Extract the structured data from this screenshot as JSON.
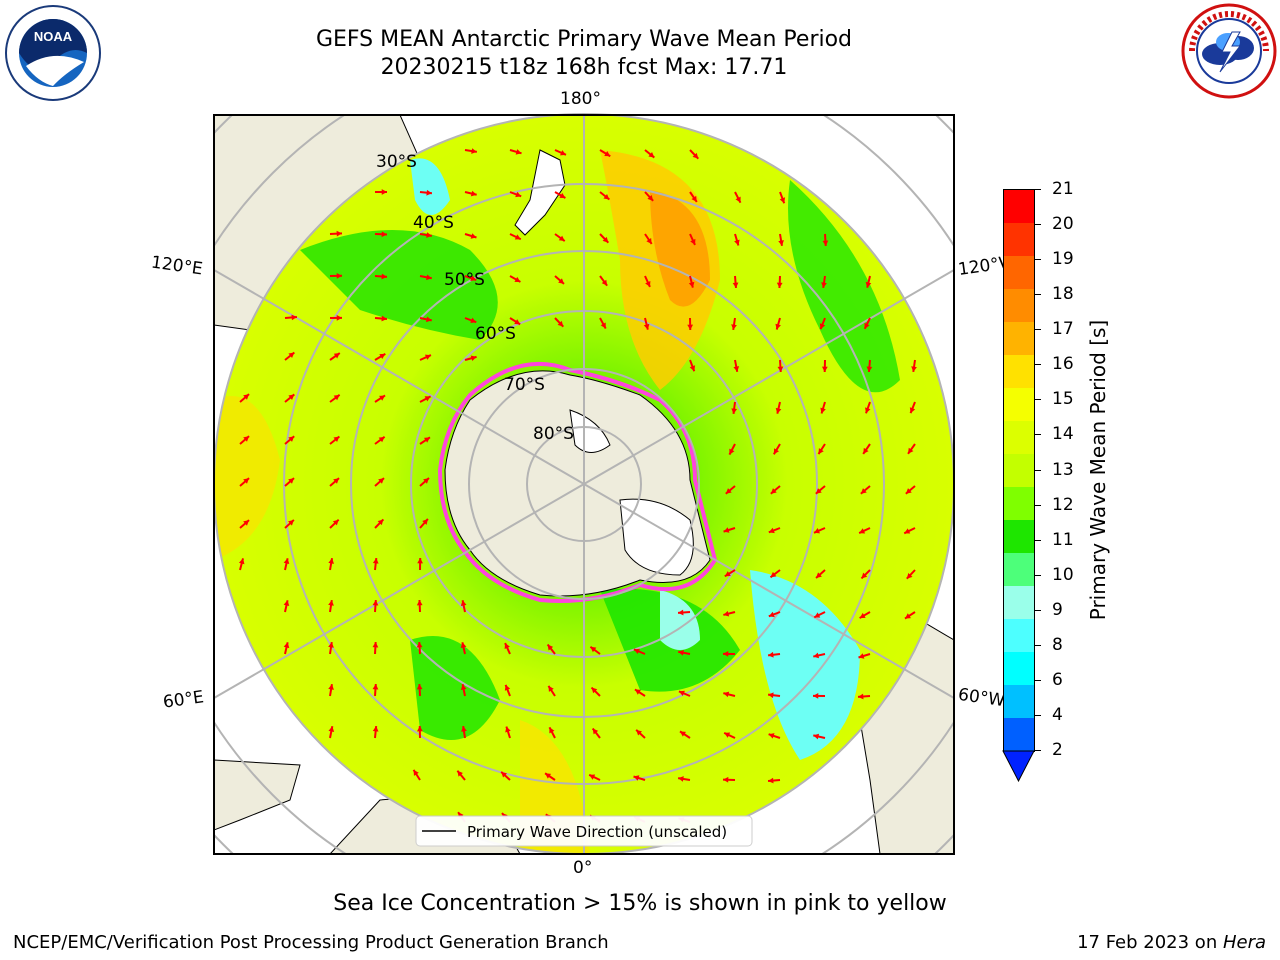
{
  "header": {
    "title_line1": "GEFS MEAN Antarctic Primary Wave Mean Period",
    "title_line2": "20230215 t18z 168h fcst   Max: 17.71"
  },
  "logos": {
    "noaa_text": "NOAA",
    "noaa_ring_text": "NATIONAL OCEANIC AND ATMOSPHERIC ADMINISTRATION · U.S. DEPARTMENT OF COMMERCE",
    "nws_ring_text": "NATIONAL WEATHER SERVICE"
  },
  "map": {
    "lon_labels": {
      "top": "180°",
      "bottom": "0°",
      "left_upper": "120°E",
      "left_lower": "60°E",
      "right_upper": "120°W",
      "right_lower": "60°W"
    },
    "lat_labels": [
      "30°S",
      "40°S",
      "50°S",
      "60°S",
      "70°S",
      "80°S"
    ],
    "legend_label": "Primary Wave Direction (unscaled)"
  },
  "colorbar": {
    "label": "Primary Wave Mean Period [s]",
    "ticks": [
      "21",
      "20",
      "19",
      "18",
      "17",
      "16",
      "15",
      "14",
      "13",
      "12",
      "11",
      "10",
      "9",
      "8",
      "6",
      "4",
      "2"
    ],
    "colors": [
      "#ff0000",
      "#ff3300",
      "#ff6600",
      "#ff8c00",
      "#ffb300",
      "#ffe100",
      "#f5ff00",
      "#dcff00",
      "#c3ff00",
      "#7fff00",
      "#1ee600",
      "#4dff7a",
      "#9affea",
      "#4dffff",
      "#00ffff",
      "#00c0ff",
      "#0060ff"
    ],
    "extend_color": "#0022ff"
  },
  "caption": "Sea Ice Concentration > 15% is shown in pink to yellow",
  "footer": {
    "left": "NCEP/EMC/Verification Post Processing Product Generation Branch",
    "right_date": "17 Feb 2023 on ",
    "right_host": "Hera"
  },
  "colors": {
    "land": "#eeecdc",
    "ocean_yellow": "#e8ff00",
    "ocean_green": "#4ee600",
    "ocean_cyan": "#6dfff4",
    "arrow": "#ff0000",
    "ice_edge": "#ff44dd",
    "grid": "#b4b4b4"
  }
}
